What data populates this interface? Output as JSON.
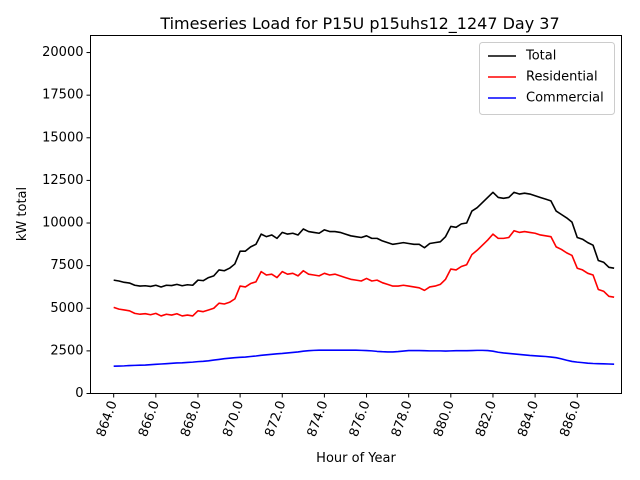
{
  "chart_data": {
    "type": "line",
    "title": "Timeseries Load for P15U p15uhs12_1247  Day 37",
    "xlabel": "Hour of Year",
    "ylabel": "kW total",
    "xlim": [
      862.9,
      888.1
    ],
    "ylim": [
      0,
      21000
    ],
    "xticks": [
      864,
      866,
      868,
      870,
      872,
      874,
      876,
      878,
      880,
      882,
      884,
      886
    ],
    "xtick_labels": [
      "864.0",
      "866.0",
      "868.0",
      "870.0",
      "872.0",
      "874.0",
      "876.0",
      "878.0",
      "880.0",
      "882.0",
      "884.0",
      "886.0"
    ],
    "yticks": [
      0,
      2500,
      5000,
      7500,
      10000,
      12500,
      15000,
      17500,
      20000
    ],
    "ytick_labels": [
      "0",
      "2500",
      "5000",
      "7500",
      "10000",
      "12500",
      "15000",
      "17500",
      "20000"
    ],
    "legend_position": "top-right",
    "x": [
      864.0,
      864.25,
      864.5,
      864.75,
      865.0,
      865.25,
      865.5,
      865.75,
      866.0,
      866.25,
      866.5,
      866.75,
      867.0,
      867.25,
      867.5,
      867.75,
      868.0,
      868.25,
      868.5,
      868.75,
      869.0,
      869.25,
      869.5,
      869.75,
      870.0,
      870.25,
      870.5,
      870.75,
      871.0,
      871.25,
      871.5,
      871.75,
      872.0,
      872.25,
      872.5,
      872.75,
      873.0,
      873.25,
      873.5,
      873.75,
      874.0,
      874.25,
      874.5,
      874.75,
      875.0,
      875.25,
      875.5,
      875.75,
      876.0,
      876.25,
      876.5,
      876.75,
      877.0,
      877.25,
      877.5,
      877.75,
      878.0,
      878.25,
      878.5,
      878.75,
      879.0,
      879.25,
      879.5,
      879.75,
      880.0,
      880.25,
      880.5,
      880.75,
      881.0,
      881.25,
      881.5,
      881.75,
      882.0,
      882.25,
      882.5,
      882.75,
      883.0,
      883.25,
      883.5,
      883.75,
      884.0,
      884.25,
      884.5,
      884.75,
      885.0,
      885.25,
      885.5,
      885.75,
      886.0,
      886.25,
      886.5,
      886.75,
      887.0,
      887.25,
      887.5,
      887.75
    ],
    "series": [
      {
        "name": "Total",
        "color": "#000000",
        "values": [
          6650,
          6600,
          6520,
          6480,
          6350,
          6300,
          6320,
          6280,
          6350,
          6250,
          6350,
          6330,
          6400,
          6320,
          6380,
          6350,
          6650,
          6620,
          6800,
          6900,
          7250,
          7200,
          7350,
          7600,
          8350,
          8350,
          8600,
          8750,
          9350,
          9200,
          9300,
          9100,
          9450,
          9350,
          9400,
          9300,
          9650,
          9500,
          9450,
          9400,
          9600,
          9500,
          9500,
          9450,
          9350,
          9250,
          9200,
          9150,
          9250,
          9100,
          9100,
          8950,
          8850,
          8750,
          8800,
          8850,
          8800,
          8750,
          8750,
          8550,
          8800,
          8850,
          8900,
          9200,
          9800,
          9750,
          9950,
          10000,
          10700,
          10900,
          11200,
          11500,
          11800,
          11500,
          11450,
          11500,
          11800,
          11700,
          11750,
          11700,
          11600,
          11500,
          11400,
          11300,
          10700,
          10500,
          10300,
          10050,
          9150,
          9050,
          8850,
          8700,
          7800,
          7700,
          7400,
          7350
        ]
      },
      {
        "name": "Residential",
        "color": "#ff0000",
        "values": [
          5050,
          4950,
          4900,
          4850,
          4700,
          4650,
          4680,
          4620,
          4700,
          4550,
          4650,
          4600,
          4680,
          4550,
          4600,
          4550,
          4850,
          4800,
          4900,
          5000,
          5300,
          5250,
          5350,
          5550,
          6300,
          6250,
          6450,
          6550,
          7150,
          6950,
          7000,
          6800,
          7150,
          7000,
          7050,
          6900,
          7200,
          7000,
          6950,
          6900,
          7050,
          6950,
          7000,
          6900,
          6800,
          6700,
          6650,
          6600,
          6750,
          6600,
          6650,
          6500,
          6400,
          6300,
          6300,
          6350,
          6300,
          6250,
          6200,
          6050,
          6250,
          6300,
          6400,
          6700,
          7300,
          7250,
          7450,
          7550,
          8150,
          8400,
          8700,
          9000,
          9350,
          9100,
          9100,
          9150,
          9550,
          9450,
          9500,
          9450,
          9400,
          9300,
          9250,
          9200,
          8600,
          8450,
          8250,
          8100,
          7350,
          7250,
          7050,
          6950,
          6100,
          6000,
          5700,
          5650
        ]
      },
      {
        "name": "Commercial",
        "color": "#0000ff",
        "values": [
          1600,
          1610,
          1620,
          1640,
          1650,
          1660,
          1670,
          1690,
          1710,
          1730,
          1750,
          1770,
          1790,
          1800,
          1820,
          1840,
          1870,
          1890,
          1920,
          1960,
          2000,
          2040,
          2070,
          2100,
          2120,
          2140,
          2170,
          2200,
          2240,
          2270,
          2300,
          2330,
          2350,
          2380,
          2410,
          2440,
          2480,
          2510,
          2530,
          2540,
          2540,
          2540,
          2540,
          2540,
          2540,
          2540,
          2540,
          2530,
          2520,
          2500,
          2470,
          2450,
          2440,
          2440,
          2460,
          2490,
          2520,
          2520,
          2520,
          2510,
          2500,
          2500,
          2500,
          2490,
          2500,
          2510,
          2510,
          2510,
          2520,
          2530,
          2530,
          2520,
          2480,
          2420,
          2380,
          2350,
          2320,
          2290,
          2260,
          2230,
          2210,
          2190,
          2170,
          2140,
          2100,
          2030,
          1950,
          1880,
          1840,
          1810,
          1780,
          1760,
          1750,
          1740,
          1730,
          1720
        ]
      }
    ]
  }
}
